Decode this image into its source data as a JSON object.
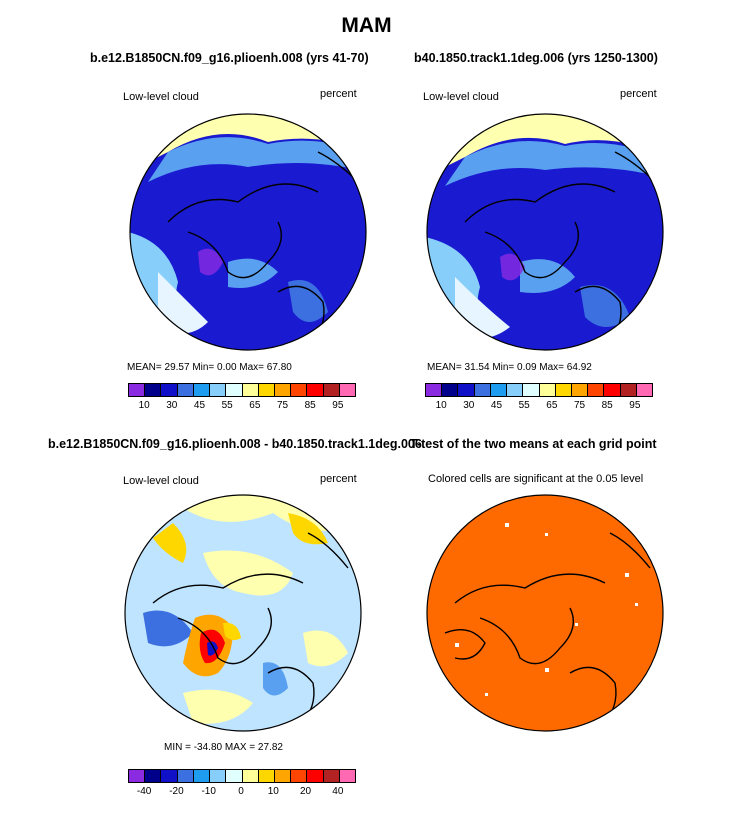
{
  "title": "MAM",
  "panels": [
    {
      "title": "b.e12.B1850CN.f09_g16.plioenh.008 (yrs 41-70)",
      "left_label": "Low-level cloud",
      "right_label": "percent",
      "stats": "MEAN=   29.57   Min=    0.00   Max=   67.80",
      "base_color": "#1a1ad0",
      "colorbar": [
        "#8a2be2",
        "#00008b",
        "#1010c8",
        "#3c6fe0",
        "#1e9cf0",
        "#87cefa",
        "#e0ffff",
        "#ffff99",
        "#ffd700",
        "#ffa500",
        "#ff4500",
        "#ff0000",
        "#b22222",
        "#ff69b4"
      ],
      "ticks": [
        "10",
        "30",
        "45",
        "55",
        "65",
        "75",
        "85",
        "95"
      ]
    },
    {
      "title": "b40.1850.track1.1deg.006 (yrs 1250-1300)",
      "left_label": "Low-level cloud",
      "right_label": "percent",
      "stats": "MEAN=   31.54   Min=    0.09   Max=   64.92",
      "base_color": "#1a1ad0",
      "colorbar": [
        "#8a2be2",
        "#00008b",
        "#1010c8",
        "#3c6fe0",
        "#1e9cf0",
        "#87cefa",
        "#e0ffff",
        "#ffff99",
        "#ffd700",
        "#ffa500",
        "#ff4500",
        "#ff0000",
        "#b22222",
        "#ff69b4"
      ],
      "ticks": [
        "10",
        "30",
        "45",
        "55",
        "65",
        "75",
        "85",
        "95"
      ]
    },
    {
      "title": "b.e12.B1850CN.f09_g16.plioenh.008 - b40.1850.track1.1deg.006",
      "left_label": "Low-level cloud",
      "right_label": "percent",
      "stats": "MIN = -34.80  MAX =  27.82",
      "base_color": "#bfe4ff",
      "colorbar": [
        "#8a2be2",
        "#00008b",
        "#1010c8",
        "#3c6fe0",
        "#1e9cf0",
        "#87cefa",
        "#e0ffff",
        "#ffff99",
        "#ffd700",
        "#ffa500",
        "#ff4500",
        "#ff0000",
        "#b22222",
        "#ff69b4"
      ],
      "ticks": [
        "-40",
        "-20",
        "-10",
        "0",
        "10",
        "20",
        "40"
      ]
    },
    {
      "title": "T-test of the two means at each grid point",
      "left_label": "Colored cells are significant at the 0.05 level",
      "base_color": "#ff6a00"
    }
  ]
}
